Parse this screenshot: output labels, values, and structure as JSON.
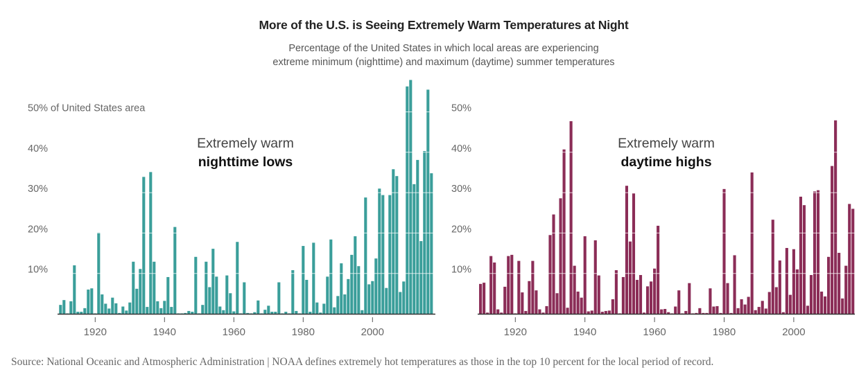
{
  "header": {
    "title": "More of the U.S. is Seeing Extremely Warm Temperatures at Night",
    "subtitle_line1": "Percentage of the United States in which local areas are experiencing",
    "subtitle_line2": "extreme minimum (nighttime) and maximum (daytime) summer temperatures"
  },
  "footer": {
    "source": "Source: National Oceanic and Atmospheric Administration | NOAA defines extremely hot temperatures as those in the top 10 percent for the local period of record."
  },
  "chart_data": [
    {
      "type": "bar",
      "title": "Extremely warm nighttime lows",
      "annotation_line1": "Extremely warm",
      "annotation_line2": "nighttime lows",
      "ylabel": "50% of United States area",
      "xlabel": "",
      "color": "#3a9e9a",
      "ylim": [
        0,
        50
      ],
      "xlim": [
        1910,
        2017
      ],
      "grid": true,
      "y_ticks": [
        {
          "value": 10,
          "label": "10%"
        },
        {
          "value": 20,
          "label": "20%"
        },
        {
          "value": 30,
          "label": "30%"
        },
        {
          "value": 40,
          "label": "40%"
        },
        {
          "value": 50,
          "label": "50% of United States area"
        }
      ],
      "x_ticks": [
        {
          "value": 1920,
          "label": "1920"
        },
        {
          "value": 1940,
          "label": "1940"
        },
        {
          "value": 1960,
          "label": "1960"
        },
        {
          "value": 1980,
          "label": "1980"
        },
        {
          "value": 2000,
          "label": "2000"
        }
      ],
      "x_start": 1910,
      "values": [
        2.2,
        3.4,
        0.1,
        3.1,
        12.0,
        0.5,
        0.5,
        1.4,
        6.0,
        6.3,
        0.1,
        20.1,
        4.8,
        2.5,
        1.3,
        4.0,
        2.6,
        0.2,
        1.8,
        0.8,
        2.8,
        12.9,
        6.2,
        11.1,
        33.9,
        1.7,
        35.1,
        12.9,
        3.1,
        1.4,
        3.2,
        9.1,
        1.7,
        21.5,
        0.1,
        0.1,
        0.2,
        0.7,
        0.5,
        14.1,
        0.1,
        2.2,
        12.9,
        6.6,
        16.1,
        9.2,
        1.8,
        0.9,
        9.5,
        5.1,
        0.6,
        17.8,
        0.1,
        7.8,
        0.2,
        0.1,
        0.4,
        3.3,
        0.1,
        1.0,
        2.0,
        0.5,
        0.5,
        7.8,
        0.1,
        0.5,
        0.1,
        10.8,
        0.7,
        0.1,
        16.8,
        8.4,
        0.5,
        17.6,
        2.8,
        0.3,
        2.5,
        9.2,
        18.4,
        1.6,
        4.4,
        12.5,
        4.8,
        8.6,
        14.6,
        19.2,
        11.8,
        0.9,
        28.8,
        7.3,
        8.1,
        13.7,
        31.0,
        29.4,
        6.4,
        29.4,
        35.8,
        34.1,
        5.4,
        8.0,
        56.3,
        57.9,
        32.1,
        38.1,
        18.0,
        40.3,
        55.5,
        34.8
      ]
    },
    {
      "type": "bar",
      "title": "Extremely warm daytime highs",
      "annotation_line1": "Extremely warm",
      "annotation_line2": "daytime highs",
      "ylabel": "",
      "xlabel": "",
      "color": "#8b2d57",
      "ylim": [
        0,
        50
      ],
      "xlim": [
        1910,
        2017
      ],
      "grid": true,
      "y_ticks": [
        {
          "value": 10,
          "label": "10%"
        },
        {
          "value": 20,
          "label": "20%"
        },
        {
          "value": 30,
          "label": "30%"
        },
        {
          "value": 40,
          "label": "40%"
        },
        {
          "value": 50,
          "label": "50%"
        }
      ],
      "x_ticks": [
        {
          "value": 1920,
          "label": "1920"
        },
        {
          "value": 1940,
          "label": "1940"
        },
        {
          "value": 1960,
          "label": "1960"
        },
        {
          "value": 1980,
          "label": "1980"
        },
        {
          "value": 2000,
          "label": "2000"
        }
      ],
      "x_start": 1910,
      "values": [
        7.4,
        7.7,
        0.3,
        14.3,
        12.7,
        1.1,
        0.3,
        6.7,
        14.3,
        14.6,
        0.1,
        13.1,
        5.3,
        0.7,
        8.1,
        13.1,
        5.8,
        1.1,
        0.3,
        1.9,
        19.5,
        24.6,
        5.1,
        28.6,
        40.7,
        1.5,
        47.7,
        11.9,
        5.5,
        4.0,
        19.2,
        0.6,
        0.8,
        18.2,
        9.5,
        0.5,
        0.7,
        0.8,
        3.6,
        10.8,
        0.1,
        9.1,
        31.7,
        17.9,
        29.8,
        8.4,
        9.6,
        0.3,
        6.8,
        8.0,
        11.2,
        21.8,
        1.1,
        1.2,
        0.4,
        0.1,
        1.8,
        5.8,
        0.1,
        0.7,
        7.6,
        0.1,
        0.2,
        1.4,
        0.2,
        0.2,
        6.3,
        1.8,
        1.9,
        0.2,
        30.9,
        7.6,
        0.2,
        14.5,
        1.4,
        3.6,
        2.3,
        4.2,
        35.0,
        0.9,
        1.7,
        3.2,
        1.3,
        5.4,
        23.3,
        6.6,
        13.2,
        0.4,
        16.3,
        4.7,
        16.0,
        11.0,
        29.0,
        26.9,
        2.0,
        9.6,
        30.3,
        30.6,
        5.5,
        4.3,
        14.1,
        36.6,
        47.9,
        15.1,
        3.8,
        11.9,
        27.2,
        26.0
      ]
    }
  ]
}
